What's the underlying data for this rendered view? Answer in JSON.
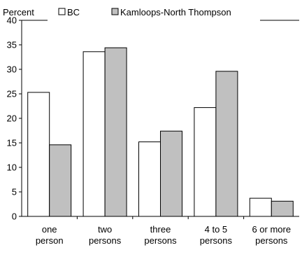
{
  "chart_data": {
    "type": "bar",
    "unit_label": "Percent",
    "categories": [
      [
        "one",
        "person"
      ],
      [
        "two",
        "persons"
      ],
      [
        "three",
        "persons"
      ],
      [
        "4 to 5",
        "persons"
      ],
      [
        "6 or more",
        "persons"
      ]
    ],
    "series": [
      {
        "name": "BC",
        "values": [
          25.3,
          33.6,
          15.2,
          22.2,
          3.7
        ],
        "color": "#ffffff"
      },
      {
        "name": "Kamloops-North Thompson",
        "values": [
          14.6,
          34.4,
          17.4,
          29.6,
          3.1
        ],
        "color": "#c0c0c0"
      }
    ],
    "ylim": [
      0,
      40
    ],
    "yticks": [
      0,
      5,
      10,
      15,
      20,
      25,
      30,
      35,
      40
    ],
    "grid": false,
    "legend_position": "top",
    "bar_edge_color": "#000000"
  }
}
